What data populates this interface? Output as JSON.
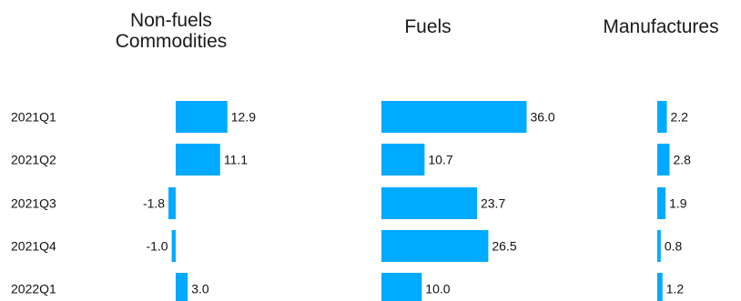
{
  "chart_data": {
    "type": "bar",
    "orientation": "horizontal",
    "categories": [
      "2021Q1",
      "2021Q2",
      "2021Q3",
      "2021Q4",
      "2022Q1"
    ],
    "series": [
      {
        "name": "Non-fuels Commodities",
        "title_lines": [
          "Non-fuels",
          "Commodities"
        ],
        "values": [
          12.9,
          11.1,
          -1.8,
          -1.0,
          3.0
        ]
      },
      {
        "name": "Fuels",
        "title_lines": [
          "Fuels"
        ],
        "values": [
          36.0,
          10.7,
          23.7,
          26.5,
          10.0
        ]
      },
      {
        "name": "Manufactures",
        "title_lines": [
          "Manufactures"
        ],
        "values": [
          2.2,
          2.8,
          1.9,
          0.8,
          1.2
        ]
      }
    ],
    "bar_color": "#00aaff",
    "grid": false,
    "legend": "none"
  }
}
